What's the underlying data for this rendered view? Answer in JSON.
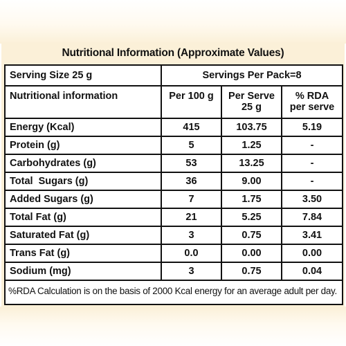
{
  "title": "Nutritional Information (Approximate Values)",
  "serving_size": "Serving Size 25 g",
  "servings_per_pack": "Servings Per Pack=8",
  "headers": {
    "nutrient": "Nutritional information",
    "per_100g": "Per 100 g",
    "per_serve_line1": "Per Serve",
    "per_serve_line2": "25 g",
    "rda_line1": "% RDA",
    "rda_line2": "per serve"
  },
  "rows": [
    {
      "name": "Energy (Kcal)",
      "per_100g": "415",
      "per_serve": "103.75",
      "rda": "5.19"
    },
    {
      "name": "Protein (g)",
      "per_100g": "5",
      "per_serve": "1.25",
      "rda": "-"
    },
    {
      "name": "Carbohydrates (g)",
      "per_100g": "53",
      "per_serve": "13.25",
      "rda": "-"
    },
    {
      "name": "Total  Sugars (g)",
      "per_100g": "36",
      "per_serve": "9.00",
      "rda": "-"
    },
    {
      "name": "Added Sugars (g)",
      "per_100g": "7",
      "per_serve": "1.75",
      "rda": "3.50"
    },
    {
      "name": "Total Fat (g)",
      "per_100g": "21",
      "per_serve": "5.25",
      "rda": "7.84"
    },
    {
      "name": "Saturated Fat (g)",
      "per_100g": "3",
      "per_serve": "0.75",
      "rda": "3.41"
    },
    {
      "name": "Trans Fat (g)",
      "per_100g": "0.0",
      "per_serve": "0.00",
      "rda": "0.00"
    },
    {
      "name": "Sodium (mg)",
      "per_100g": "3",
      "per_serve": "0.75",
      "rda": "0.04"
    }
  ],
  "footnote": "%RDA Calculation is on the basis of 2000 Kcal energy for an average adult per day.",
  "colors": {
    "panel": "#fbf0d8",
    "border": "#111111",
    "text": "#111111"
  }
}
